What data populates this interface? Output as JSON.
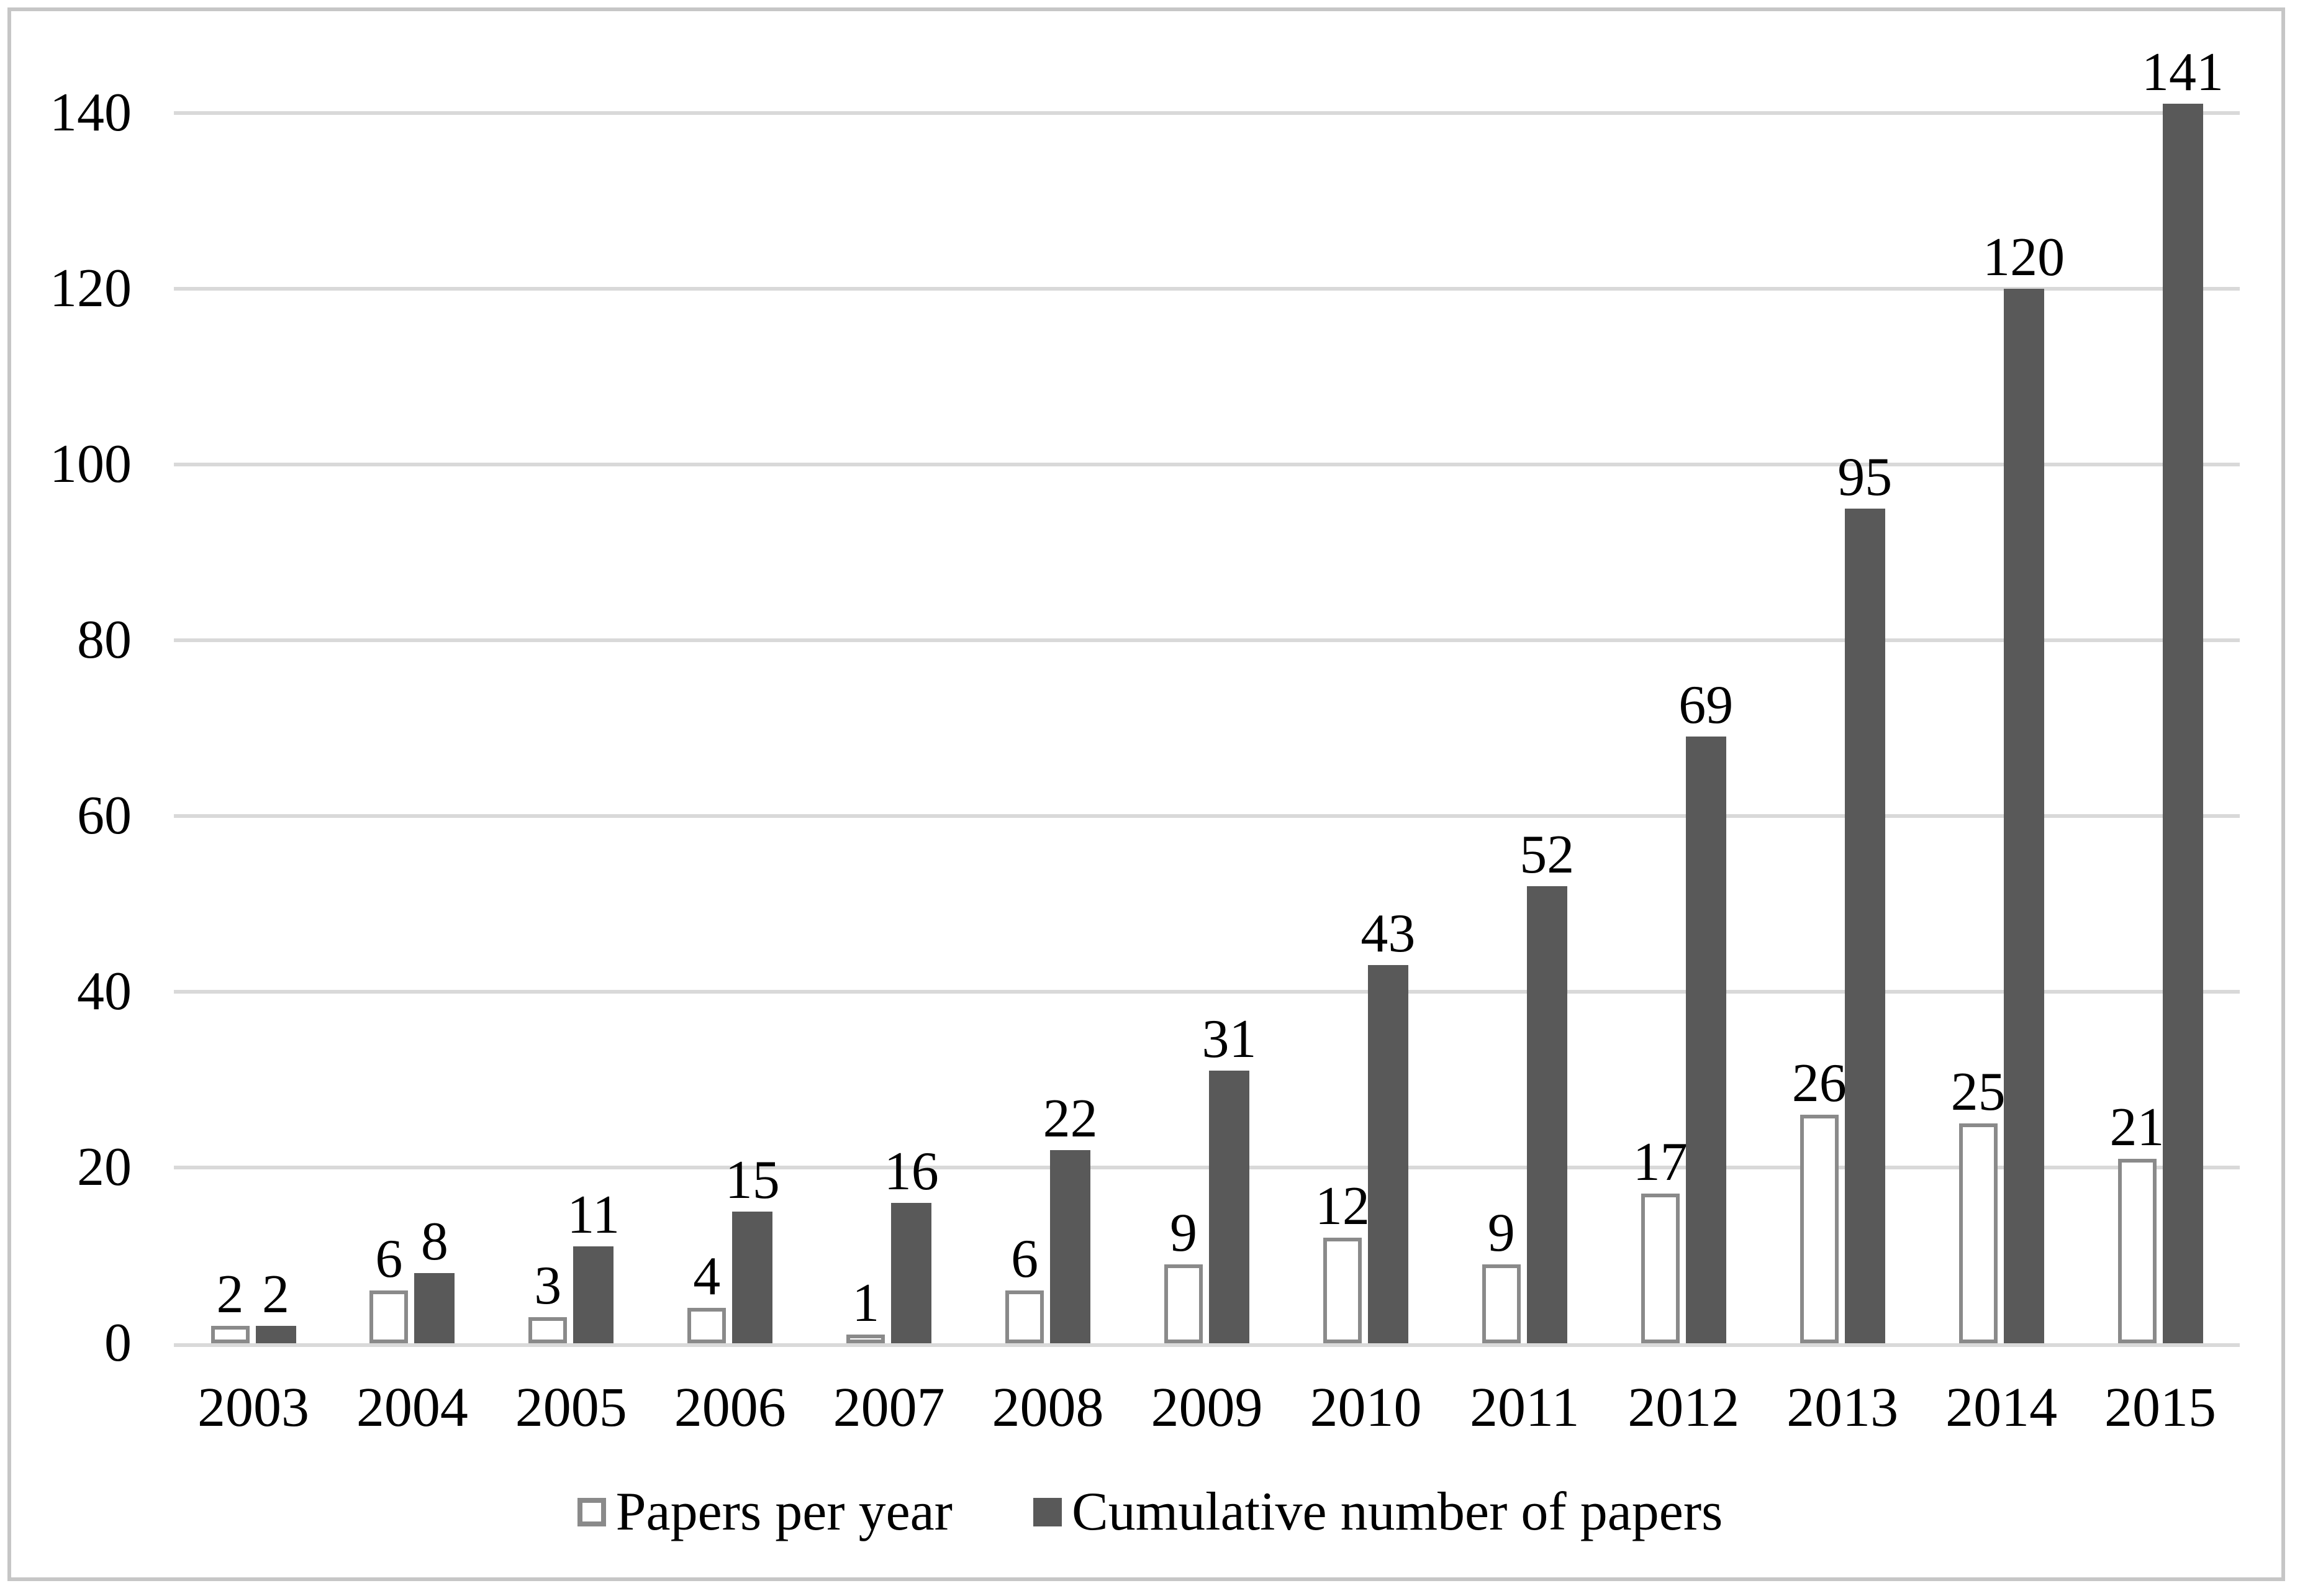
{
  "chart_data": {
    "type": "bar",
    "title": "",
    "categories": [
      "2003",
      "2004",
      "2005",
      "2006",
      "2007",
      "2008",
      "2009",
      "2010",
      "2011",
      "2012",
      "2013",
      "2014",
      "2015"
    ],
    "series": [
      {
        "name": "Papers per year",
        "style": "white-outlined",
        "values": [
          2,
          6,
          3,
          4,
          1,
          6,
          9,
          12,
          9,
          17,
          26,
          25,
          21
        ]
      },
      {
        "name": "Cumulative number of papers",
        "style": "dark-gray",
        "values": [
          2,
          8,
          11,
          15,
          16,
          22,
          31,
          43,
          52,
          69,
          95,
          120,
          141
        ]
      }
    ],
    "yticks": [
      0,
      20,
      40,
      60,
      80,
      100,
      120,
      140
    ],
    "ylim": [
      0,
      150
    ],
    "grid": "horizontal",
    "data_labels": true,
    "legend_position": "bottom"
  },
  "legend": {
    "items": [
      {
        "label": "Papers per year",
        "swatch": "white-outlined"
      },
      {
        "label": "Cumulative number of papers",
        "swatch": "dark-gray"
      }
    ]
  },
  "colors": {
    "dark_bar": "#595959",
    "bar_outline": "#8a8a8a",
    "gridline": "#d9d9d9",
    "axis_line": "#d9d9d9",
    "frame_border": "#c6c6c6",
    "text": "#000000",
    "background": "#ffffff"
  }
}
